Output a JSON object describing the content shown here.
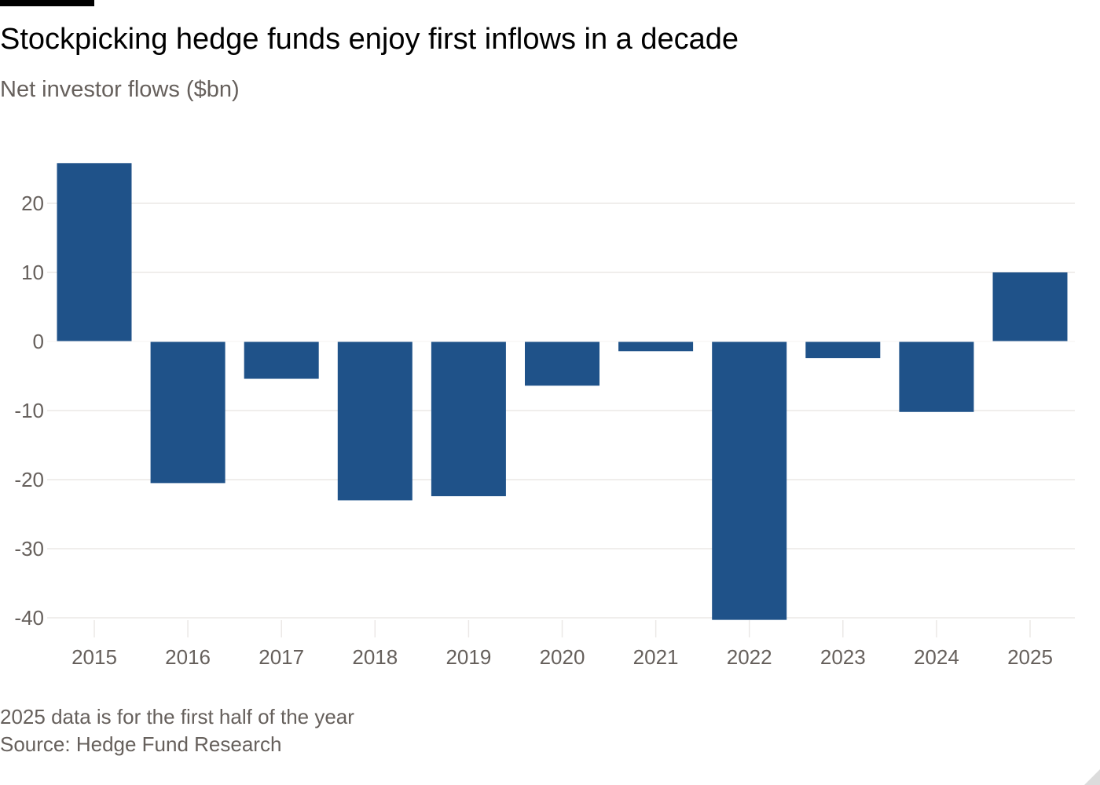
{
  "title": "Stockpicking hedge funds enjoy first inflows in a decade",
  "subtitle": "Net investor flows ($bn)",
  "note": "2025 data is for the first half of the year",
  "source": "Source: Hedge Fund Research",
  "colors": {
    "bar": "#1f5289",
    "grid": "#ebe8e6",
    "axis_text": "#66605c",
    "zero_line": "#ffffff"
  },
  "chart_data": {
    "type": "bar",
    "title": "Stockpicking hedge funds enjoy first inflows in a decade",
    "subtitle": "Net investor flows ($bn)",
    "xlabel": "",
    "ylabel": "",
    "categories": [
      "2015",
      "2016",
      "2017",
      "2018",
      "2019",
      "2020",
      "2021",
      "2022",
      "2023",
      "2024",
      "2025"
    ],
    "values": [
      25.8,
      -20.5,
      -5.4,
      -23.0,
      -22.4,
      -6.4,
      -1.4,
      -40.3,
      -2.4,
      -10.2,
      10.0
    ],
    "ylim": [
      -40,
      30
    ],
    "yticks": [
      20,
      10,
      0,
      -10,
      -20,
      -30,
      -40
    ],
    "ytick_labels": [
      "20",
      "10",
      "0",
      "-10",
      "-20",
      "-30",
      "-40"
    ],
    "grid": true,
    "legend": "none"
  }
}
